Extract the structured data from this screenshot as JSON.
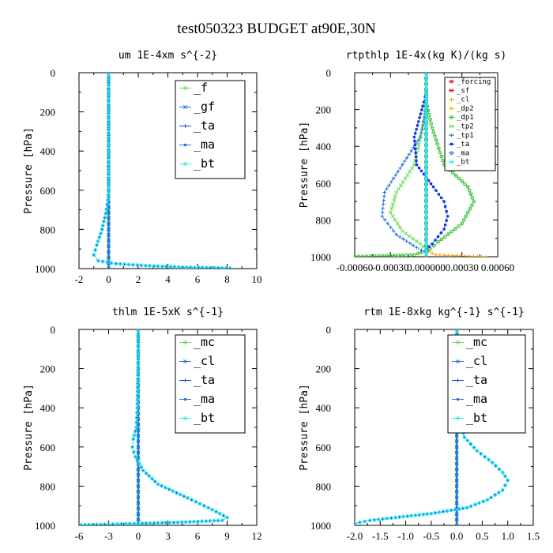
{
  "figure": {
    "title": "test050323  BUDGET at90E,30N"
  },
  "colors": {
    "green": "#22bb22",
    "light_green": "#66dd55",
    "blue": "#1133ee",
    "steel_blue": "#2277dd",
    "cyan": "#22eeee",
    "red": "#dd1111",
    "orange": "#ff9900",
    "yellow": "#eecc00",
    "black": "#000000"
  },
  "chart_data": [
    {
      "type": "line",
      "title": "um   1E-4xm s^{-2}",
      "ylabel": "Pressure [hPa]",
      "xlim": [
        -2,
        10
      ],
      "ylim": [
        1000,
        0
      ],
      "xticks": [
        "-2",
        "0",
        "2",
        "4",
        "6",
        "8",
        "10"
      ],
      "xtick_values": [
        -2,
        0,
        2,
        4,
        6,
        8,
        10
      ],
      "yticks": [
        "0",
        "200",
        "400",
        "600",
        "800",
        "1000"
      ],
      "legend": [
        "_f",
        "_gf",
        "_ta",
        "_ma",
        "_bt"
      ],
      "series": [
        {
          "name": "_f",
          "color_key": "light_green",
          "points": [
            [
              0,
              0
            ],
            [
              0,
              1000
            ]
          ]
        },
        {
          "name": "_gf",
          "color_key": "steel_blue",
          "points": [
            [
              0,
              0
            ],
            [
              0,
              1000
            ]
          ]
        },
        {
          "name": "_ta",
          "color_key": "blue",
          "points": [
            [
              0,
              0
            ],
            [
              0,
              600
            ],
            [
              -0.05,
              650
            ],
            [
              -0.2,
              720
            ],
            [
              -0.45,
              800
            ],
            [
              -0.8,
              880
            ],
            [
              -1.0,
              930
            ],
            [
              -0.7,
              960
            ],
            [
              0.5,
              975
            ],
            [
              2.5,
              985
            ],
            [
              5,
              993
            ],
            [
              8.2,
              998
            ]
          ]
        },
        {
          "name": "_ma",
          "color_key": "steel_blue",
          "points": [
            [
              0,
              0
            ],
            [
              0,
              1000
            ]
          ]
        },
        {
          "name": "_bt",
          "color_key": "cyan",
          "points": [
            [
              0,
              0
            ],
            [
              0,
              600
            ],
            [
              -0.05,
              650
            ],
            [
              -0.2,
              720
            ],
            [
              -0.45,
              800
            ],
            [
              -0.8,
              880
            ],
            [
              -1.0,
              930
            ],
            [
              -0.7,
              960
            ],
            [
              0.5,
              975
            ],
            [
              2.5,
              985
            ],
            [
              5,
              993
            ],
            [
              8.2,
              998
            ]
          ]
        }
      ]
    },
    {
      "type": "line",
      "title": "rtpthlp   1E-4x(kg K)/(kg s)",
      "ylabel": "Pressure [hPa]",
      "xlim": [
        -0.0006,
        0.0006
      ],
      "ylim": [
        1000,
        0
      ],
      "xticks": [
        "-0.00060",
        "-0.00030",
        "0.000000",
        "0.00030",
        "0.00060"
      ],
      "xtick_values": [
        -0.0006,
        -0.0003,
        0,
        0.0003,
        0.0006
      ],
      "yticks": [
        "0",
        "200",
        "400",
        "600",
        "800",
        "1000"
      ],
      "legend": [
        "_forcing",
        "_sf",
        "_cl",
        "_dp2",
        "_dp1",
        "_tp2",
        "_tp1",
        "_ta",
        "_ma",
        "_bt"
      ],
      "series": [
        {
          "name": "_forcing",
          "color_key": "red",
          "points": [
            [
              0,
              0
            ],
            [
              0,
              1000
            ]
          ]
        },
        {
          "name": "_sf",
          "color_key": "red",
          "points": [
            [
              0,
              0
            ],
            [
              0,
              1000
            ]
          ]
        },
        {
          "name": "_cl",
          "color_key": "orange",
          "points": [
            [
              0,
              0
            ],
            [
              0,
              940
            ],
            [
              2e-05,
              970
            ],
            [
              8e-05,
              990
            ],
            [
              0.0005,
              1000
            ]
          ]
        },
        {
          "name": "_dp2",
          "color_key": "yellow",
          "points": [
            [
              0,
              0
            ],
            [
              0,
              1000
            ]
          ]
        },
        {
          "name": "_dp1",
          "color_key": "green",
          "points": [
            [
              0,
              100
            ],
            [
              0,
              160
            ],
            [
              5e-05,
              300
            ],
            [
              0.00015,
              500
            ],
            [
              0.00035,
              620
            ],
            [
              0.0004,
              700
            ],
            [
              0.0003,
              820
            ],
            [
              0.0001,
              920
            ],
            [
              3e-05,
              960
            ],
            [
              -0.0001,
              990
            ],
            [
              -0.0006,
              1000
            ]
          ]
        },
        {
          "name": "_tp2",
          "color_key": "light_green",
          "points": [
            [
              0,
              100
            ],
            [
              0,
              160
            ],
            [
              -3e-05,
              300
            ],
            [
              -0.0001,
              500
            ],
            [
              -0.00025,
              650
            ],
            [
              -0.0003,
              760
            ],
            [
              -0.0002,
              860
            ],
            [
              -5e-05,
              930
            ],
            [
              0,
              960
            ],
            [
              0,
              1000
            ]
          ]
        },
        {
          "name": "_tp1",
          "color_key": "steel_blue",
          "points": [
            [
              0,
              100
            ],
            [
              0,
              200
            ],
            [
              -5e-05,
              350
            ],
            [
              -0.0002,
              500
            ],
            [
              -0.00035,
              650
            ],
            [
              -0.00037,
              780
            ],
            [
              -0.00025,
              880
            ],
            [
              -8e-05,
              950
            ],
            [
              0,
              980
            ],
            [
              0,
              1000
            ]
          ]
        },
        {
          "name": "_ta",
          "color_key": "blue",
          "points": [
            [
              0,
              100
            ],
            [
              -2e-05,
              160
            ],
            [
              -0.0001,
              350
            ],
            [
              -8e-05,
              500
            ],
            [
              6e-05,
              620
            ],
            [
              0.00015,
              700
            ],
            [
              0.00018,
              780
            ],
            [
              0.00015,
              850
            ],
            [
              5e-05,
              930
            ],
            [
              0,
              960
            ],
            [
              0,
              1000
            ]
          ]
        },
        {
          "name": "_ma",
          "color_key": "steel_blue",
          "points": [
            [
              0,
              0
            ],
            [
              0,
              1000
            ]
          ]
        },
        {
          "name": "_bt",
          "color_key": "cyan",
          "points": [
            [
              0,
              0
            ],
            [
              0,
              1000
            ]
          ]
        }
      ]
    },
    {
      "type": "line",
      "title": "thlm   1E-5xK s^{-1}",
      "ylabel": "Pressure [hPa]",
      "xlim": [
        -6,
        12
      ],
      "ylim": [
        1000,
        0
      ],
      "xticks": [
        "-6",
        "-3",
        "0",
        "3",
        "6",
        "9",
        "12"
      ],
      "xtick_values": [
        -6,
        -3,
        0,
        3,
        6,
        9,
        12
      ],
      "yticks": [
        "0",
        "200",
        "400",
        "600",
        "800",
        "1000"
      ],
      "legend": [
        "_mc",
        "_cl",
        "_ta",
        "_ma",
        "_bt"
      ],
      "series": [
        {
          "name": "_mc",
          "color_key": "light_green",
          "points": [
            [
              0,
              0
            ],
            [
              0,
              1000
            ]
          ]
        },
        {
          "name": "_cl",
          "color_key": "steel_blue",
          "points": [
            [
              0,
              0
            ],
            [
              0,
              1000
            ]
          ]
        },
        {
          "name": "_ta",
          "color_key": "blue",
          "points": [
            [
              0,
              0
            ],
            [
              0,
              150
            ],
            [
              -0.1,
              400
            ],
            [
              -0.2,
              500
            ],
            [
              -0.5,
              560
            ],
            [
              -0.6,
              600
            ],
            [
              -0.3,
              650
            ],
            [
              0.5,
              720
            ],
            [
              2,
              790
            ],
            [
              5,
              860
            ],
            [
              7.5,
              920
            ],
            [
              9,
              960
            ],
            [
              8.5,
              975
            ],
            [
              4,
              985
            ],
            [
              0,
              990
            ],
            [
              -3,
              995
            ],
            [
              -5.8,
              998
            ]
          ]
        },
        {
          "name": "_ma",
          "color_key": "steel_blue",
          "points": [
            [
              0,
              0
            ],
            [
              0,
              1000
            ]
          ]
        },
        {
          "name": "_bt",
          "color_key": "cyan",
          "points": [
            [
              0,
              0
            ],
            [
              0,
              150
            ],
            [
              -0.1,
              400
            ],
            [
              -0.2,
              500
            ],
            [
              -0.5,
              560
            ],
            [
              -0.6,
              600
            ],
            [
              -0.3,
              650
            ],
            [
              0.5,
              720
            ],
            [
              2,
              790
            ],
            [
              5,
              860
            ],
            [
              7.5,
              920
            ],
            [
              9,
              960
            ],
            [
              8.5,
              975
            ],
            [
              4,
              985
            ],
            [
              0,
              990
            ],
            [
              -3,
              995
            ],
            [
              -5.8,
              998
            ]
          ]
        }
      ]
    },
    {
      "type": "line",
      "title": "rtm   1E-8xkg kg^{-1} s^{-1}",
      "ylabel": "Pressure [hPa]",
      "xlim": [
        -2.0,
        1.5
      ],
      "ylim": [
        1000,
        0
      ],
      "xticks": [
        "-2.0",
        "-1.5",
        "-1.0",
        "-0.5",
        "0.0",
        "0.5",
        "1.0",
        "1.5"
      ],
      "xtick_values": [
        -2.0,
        -1.5,
        -1.0,
        -0.5,
        0.0,
        0.5,
        1.0,
        1.5
      ],
      "yticks": [
        "0",
        "200",
        "400",
        "600",
        "800",
        "1000"
      ],
      "legend": [
        "_mc",
        "_cl",
        "_ta",
        "_ma",
        "_bt"
      ],
      "series": [
        {
          "name": "_mc",
          "color_key": "light_green",
          "points": [
            [
              0,
              0
            ],
            [
              0,
              1000
            ]
          ]
        },
        {
          "name": "_cl",
          "color_key": "steel_blue",
          "points": [
            [
              0,
              0
            ],
            [
              0,
              1000
            ]
          ]
        },
        {
          "name": "_ta",
          "color_key": "blue",
          "points": [
            [
              0,
              0
            ],
            [
              0.05,
              100
            ],
            [
              0.1,
              200
            ],
            [
              0.08,
              300
            ],
            [
              0.03,
              380
            ],
            [
              0.05,
              450
            ],
            [
              0.15,
              550
            ],
            [
              0.4,
              620
            ],
            [
              0.7,
              680
            ],
            [
              0.9,
              730
            ],
            [
              1.0,
              770
            ],
            [
              0.9,
              820
            ],
            [
              0.6,
              870
            ],
            [
              0.2,
              910
            ],
            [
              -0.5,
              940
            ],
            [
              -1.2,
              960
            ],
            [
              -1.7,
              975
            ],
            [
              -2.0,
              990
            ]
          ]
        },
        {
          "name": "_ma",
          "color_key": "steel_blue",
          "points": [
            [
              0,
              0
            ],
            [
              0,
              1000
            ]
          ]
        },
        {
          "name": "_bt",
          "color_key": "cyan",
          "points": [
            [
              0,
              0
            ],
            [
              0.05,
              100
            ],
            [
              0.1,
              200
            ],
            [
              0.08,
              300
            ],
            [
              0.03,
              380
            ],
            [
              0.05,
              450
            ],
            [
              0.15,
              550
            ],
            [
              0.4,
              620
            ],
            [
              0.7,
              680
            ],
            [
              0.9,
              730
            ],
            [
              1.0,
              770
            ],
            [
              0.9,
              820
            ],
            [
              0.6,
              870
            ],
            [
              0.2,
              910
            ],
            [
              -0.5,
              940
            ],
            [
              -1.2,
              960
            ],
            [
              -1.7,
              975
            ],
            [
              -2.0,
              990
            ]
          ]
        }
      ]
    }
  ]
}
